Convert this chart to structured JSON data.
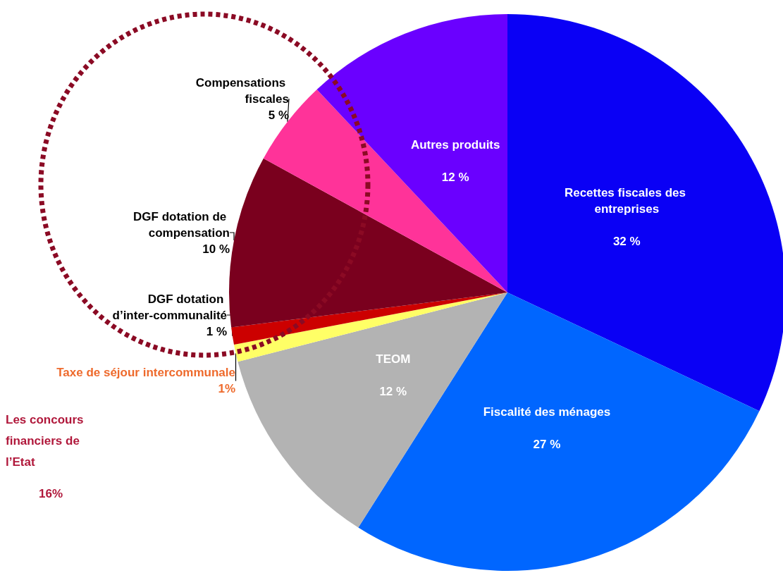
{
  "chart_data": {
    "type": "pie",
    "categories": [
      "Recettes fiscales des entreprises",
      "Fiscalité des ménages",
      "TEOM",
      "Taxe de séjour intercommunale",
      "DGF dotation d’inter-communalité",
      "DGF dotation de compensation",
      "Compensations fiscales",
      "Autres produits"
    ],
    "values": [
      32,
      27,
      12,
      1,
      1,
      10,
      5,
      12
    ],
    "value_labels": [
      "32 %",
      "27 %",
      "12 %",
      "1%",
      "1 %",
      "10 %",
      "5 %",
      "12 %"
    ],
    "colors": [
      "#0a00f5",
      "#0066ff",
      "#b3b3b3",
      "#ffff66",
      "#cc0000",
      "#7a001e",
      "#ff3399",
      "#6a00ff"
    ],
    "annotations": [
      "Les concours financiers de l’Etat",
      "16%"
    ],
    "legend": false
  }
}
